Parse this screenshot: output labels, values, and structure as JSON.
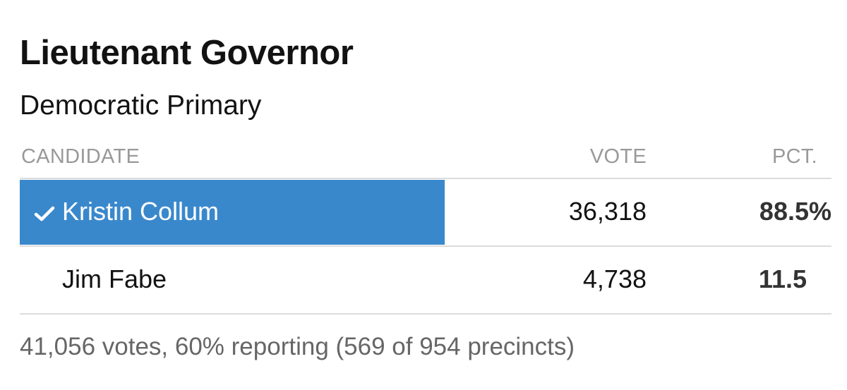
{
  "race": {
    "title": "Lieutenant Governor",
    "subtitle": "Democratic Primary"
  },
  "table": {
    "headers": {
      "candidate": "CANDIDATE",
      "vote": "VOTE",
      "pct": "PCT."
    },
    "rows": [
      {
        "name": "Kristin Collum",
        "votes": "36,318",
        "pct": "88.5%",
        "winner": true,
        "winner_icon": "check-icon",
        "vote_share": 0.885
      },
      {
        "name": "Jim Fabe",
        "votes": "4,738",
        "pct": "11.5",
        "winner": false,
        "vote_share": 0.115
      }
    ]
  },
  "footnote": "41,056 votes, 60% reporting (569 of 954 precincts)",
  "colors": {
    "winner_bar": "#3a88cc",
    "header_text": "#999999",
    "divider": "#dcdcdc",
    "footnote_text": "#666666"
  }
}
